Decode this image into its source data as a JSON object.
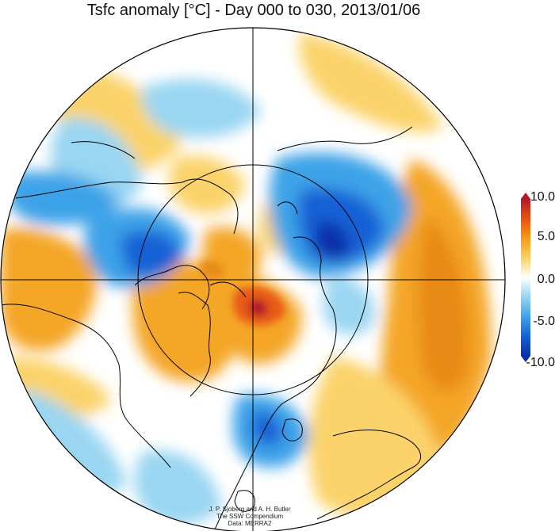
{
  "title": "Tsfc anomaly [°C] - Day 000 to 030, 2013/01/06",
  "colorbar": {
    "ticks": [
      "10.0",
      "5.0",
      "0.0",
      "-5.0",
      "-10.0"
    ],
    "colors": [
      "#b2182b",
      "#e8500e",
      "#f69a16",
      "#fbd36a",
      "#ffffff",
      "#9ad6f2",
      "#3ea3e8",
      "#1460d6",
      "#0a2fa8"
    ]
  },
  "credit": {
    "line1": "J. P. Sjoberg and A. H. Butler",
    "line2": "The SSW Compendium",
    "line3": "Data: MERRA2"
  },
  "palette": {
    "ocean_bg": "#ffffff",
    "warm_weak": "#fbd36a",
    "warm": "#f4a625",
    "warm_strong": "#e85a14",
    "hot": "#b2182b",
    "cold_weak": "#9ad6f2",
    "cold": "#3ea3e8",
    "cold_strong": "#1460d6",
    "coast": "#000000"
  }
}
